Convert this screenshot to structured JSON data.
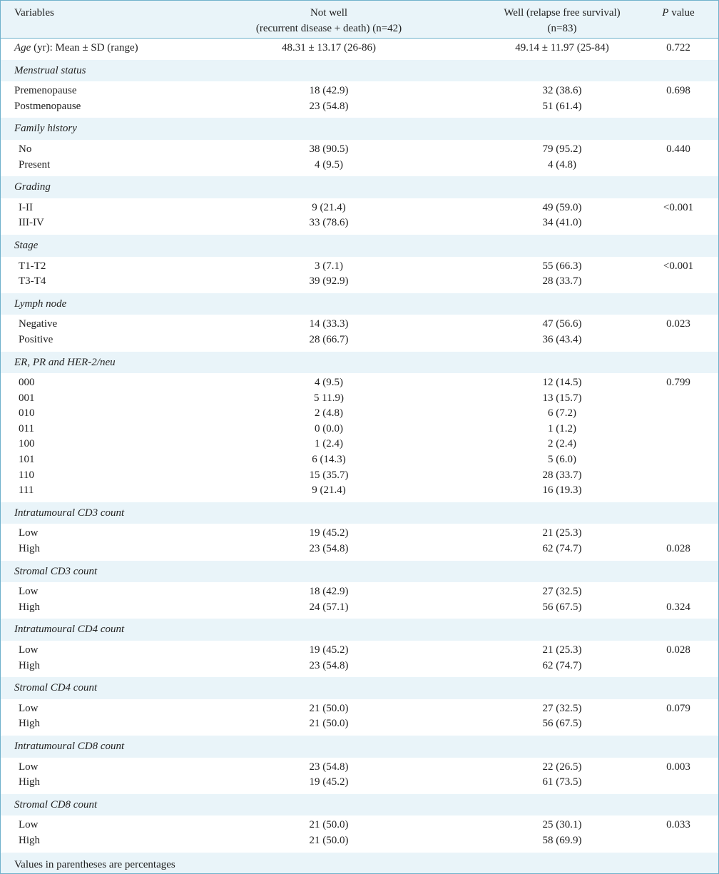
{
  "header": {
    "variables": "Variables",
    "not_well_line1": "Not well",
    "not_well_line2": "(recurrent disease + death) (n=42)",
    "well_line1": "Well (relapse free survival)",
    "well_line2": "(n=83)",
    "p_italic": "P",
    "p_rest": " value"
  },
  "age": {
    "label_italic": "Age",
    "label_rest": " (yr): Mean ± SD (range)",
    "not_well": "48.31 ± 13.17 (26-86)",
    "well": "49.14 ± 11.97 (25-84)",
    "p": "0.722"
  },
  "groups": [
    {
      "title": "Menstrual status",
      "p": "0.698",
      "p_row": 0,
      "indent": false,
      "rows": [
        {
          "label": "Premenopause",
          "not_well": "18 (42.9)",
          "well": "32 (38.6)"
        },
        {
          "label": "Postmenopause",
          "not_well": "23 (54.8)",
          "well": "51 (61.4)"
        }
      ]
    },
    {
      "title": "Family history",
      "p": "0.440",
      "p_row": 0,
      "indent": true,
      "rows": [
        {
          "label": "No",
          "not_well": "38 (90.5)",
          "well": "79 (95.2)"
        },
        {
          "label": "Present",
          "not_well": "4 (9.5)",
          "well": "4 (4.8)"
        }
      ]
    },
    {
      "title": "Grading",
      "p": "<0.001",
      "p_row": 0,
      "indent": true,
      "rows": [
        {
          "label": "I-II",
          "not_well": "9 (21.4)",
          "well": "49 (59.0)"
        },
        {
          "label": "III-IV",
          "not_well": "33 (78.6)",
          "well": "34 (41.0)"
        }
      ]
    },
    {
      "title": "Stage",
      "p": "<0.001",
      "p_row": 0,
      "indent": true,
      "rows": [
        {
          "label": "T1-T2",
          "not_well": "3 (7.1)",
          "well": "55 (66.3)"
        },
        {
          "label": "T3-T4",
          "not_well": "39 (92.9)",
          "well": "28 (33.7)"
        }
      ]
    },
    {
      "title": "Lymph node",
      "p": "0.023",
      "p_row": 0,
      "indent": true,
      "rows": [
        {
          "label": "Negative",
          "not_well": "14 (33.3)",
          "well": "47 (56.6)"
        },
        {
          "label": "Positive",
          "not_well": "28 (66.7)",
          "well": "36 (43.4)"
        }
      ]
    },
    {
      "title": "ER, PR and HER-2/neu",
      "p": "0.799",
      "p_row": 0,
      "indent": true,
      "rows": [
        {
          "label": "000",
          "not_well": "4 (9.5)",
          "well": "12 (14.5)"
        },
        {
          "label": "001",
          "not_well": "5 11.9)",
          "well": "13 (15.7)"
        },
        {
          "label": "010",
          "not_well": "2 (4.8)",
          "well": "6 (7.2)"
        },
        {
          "label": "011",
          "not_well": "0 (0.0)",
          "well": "1 (1.2)"
        },
        {
          "label": "100",
          "not_well": "1 (2.4)",
          "well": "2 (2.4)"
        },
        {
          "label": "101",
          "not_well": "6 (14.3)",
          "well": "5 (6.0)"
        },
        {
          "label": "110",
          "not_well": "15 (35.7)",
          "well": "28 (33.7)"
        },
        {
          "label": "111",
          "not_well": "9 (21.4)",
          "well": "16 (19.3)"
        }
      ]
    },
    {
      "title": "Intratumoural CD3 count",
      "p": "0.028",
      "p_row": 1,
      "indent": true,
      "rows": [
        {
          "label": "Low",
          "not_well": "19 (45.2)",
          "well": "21 (25.3)"
        },
        {
          "label": "High",
          "not_well": "23 (54.8)",
          "well": "62 (74.7)"
        }
      ]
    },
    {
      "title": "Stromal CD3 count",
      "p": "0.324",
      "p_row": 1,
      "indent": true,
      "rows": [
        {
          "label": "Low",
          "not_well": "18 (42.9)",
          "well": "27 (32.5)"
        },
        {
          "label": "High",
          "not_well": "24 (57.1)",
          "well": "56 (67.5)"
        }
      ]
    },
    {
      "title": "Intratumoural CD4 count",
      "p": "0.028",
      "p_row": 0,
      "indent": true,
      "rows": [
        {
          "label": "Low",
          "not_well": "19 (45.2)",
          "well": "21 (25.3)"
        },
        {
          "label": "High",
          "not_well": "23 (54.8)",
          "well": "62 (74.7)"
        }
      ]
    },
    {
      "title": "Stromal CD4 count",
      "p": "0.079",
      "p_row": 0,
      "indent": true,
      "rows": [
        {
          "label": "Low",
          "not_well": "21 (50.0)",
          "well": "27 (32.5)"
        },
        {
          "label": "High",
          "not_well": "21 (50.0)",
          "well": "56 (67.5)"
        }
      ]
    },
    {
      "title": "Intratumoural CD8 count",
      "p": "0.003",
      "p_row": 0,
      "indent": true,
      "rows": [
        {
          "label": "Low",
          "not_well": "23 (54.8)",
          "well": "22 (26.5)"
        },
        {
          "label": "High",
          "not_well": "19 (45.2)",
          "well": "61 (73.5)"
        }
      ]
    },
    {
      "title": "Stromal CD8 count",
      "p": "0.033",
      "p_row": 0,
      "indent": true,
      "rows": [
        {
          "label": "Low",
          "not_well": "21 (50.0)",
          "well": "25 (30.1)"
        },
        {
          "label": "High",
          "not_well": "21 (50.0)",
          "well": "58 (69.9)"
        }
      ]
    }
  ],
  "footnote": "Values in parentheses are percentages"
}
